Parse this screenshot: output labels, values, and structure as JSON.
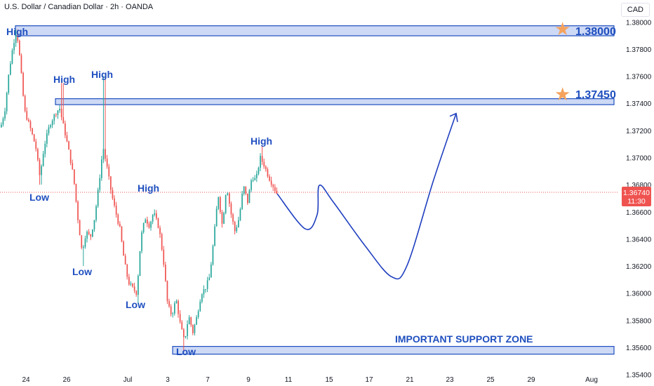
{
  "header": {
    "title": "U.S. Dollar / Canadian Dollar · 2h · OANDA",
    "currency": "CAD"
  },
  "chart_data": {
    "type": "candlestick",
    "yticks": [
      1.38,
      1.378,
      1.376,
      1.374,
      1.372,
      1.37,
      1.368,
      1.366,
      1.364,
      1.362,
      1.36,
      1.358,
      1.356,
      1.354
    ],
    "ylim": [
      1.35315,
      1.38162
    ],
    "xticks": [
      "24",
      "26",
      "Jul",
      "3",
      "7",
      "9",
      "11",
      "15",
      "17",
      "21",
      "23",
      "25",
      "29",
      "Aug"
    ],
    "last_price": "1.36740",
    "countdown": "11:30",
    "levels": [
      {
        "label": "1.38000",
        "top": 1.37972,
        "bottom": 1.37898
      },
      {
        "label": "1.37450",
        "top": 1.37434,
        "bottom": 1.3739
      }
    ],
    "support_zone": {
      "label": "IMPORTANT SUPPORT ZONE",
      "top": 1.35607,
      "bottom": 1.3555
    },
    "annotations": [
      {
        "text": "High",
        "near": 1.3793
      },
      {
        "text": "High",
        "near": 1.37473
      },
      {
        "text": "High",
        "near": 1.37553
      },
      {
        "text": "High",
        "near": 1.37025
      },
      {
        "text": "High",
        "near": 1.36713
      },
      {
        "text": "Low",
        "near": 1.36763
      },
      {
        "text": "Low",
        "near": 1.36152
      },
      {
        "text": "Low",
        "near": 1.3582
      },
      {
        "text": "Low",
        "near": 1.35456
      }
    ],
    "colors": {
      "up": "#26a69a",
      "down": "#ef5350",
      "accent": "#1f4fbf",
      "zone_fill": "#cdd9f5",
      "star": "#f5a25d"
    },
    "anchors": [
      {
        "x": 0,
        "p": 1.37223
      },
      {
        "x": 6,
        "p": 1.37346
      },
      {
        "x": 12,
        "p": 1.37634
      },
      {
        "x": 18,
        "p": 1.37836
      },
      {
        "x": 23,
        "p": 1.37939
      },
      {
        "x": 28,
        "p": 1.37702
      },
      {
        "x": 34,
        "p": 1.37346
      },
      {
        "x": 42,
        "p": 1.37223
      },
      {
        "x": 50,
        "p": 1.37081
      },
      {
        "x": 56,
        "p": 1.36856
      },
      {
        "x": 62,
        "p": 1.37081
      },
      {
        "x": 70,
        "p": 1.37243
      },
      {
        "x": 78,
        "p": 1.37325
      },
      {
        "x": 84,
        "p": 1.37366
      },
      {
        "x": 90,
        "p": 1.37223
      },
      {
        "x": 96,
        "p": 1.37081
      },
      {
        "x": 104,
        "p": 1.36856
      },
      {
        "x": 110,
        "p": 1.36556
      },
      {
        "x": 116,
        "p": 1.36305
      },
      {
        "x": 122,
        "p": 1.36453
      },
      {
        "x": 128,
        "p": 1.36412
      },
      {
        "x": 134,
        "p": 1.36556
      },
      {
        "x": 140,
        "p": 1.36795
      },
      {
        "x": 146,
        "p": 1.37081
      },
      {
        "x": 152,
        "p": 1.36918
      },
      {
        "x": 158,
        "p": 1.36733
      },
      {
        "x": 164,
        "p": 1.36597
      },
      {
        "x": 170,
        "p": 1.36474
      },
      {
        "x": 176,
        "p": 1.36244
      },
      {
        "x": 182,
        "p": 1.3608
      },
      {
        "x": 188,
        "p": 1.36039
      },
      {
        "x": 194,
        "p": 1.35998
      },
      {
        "x": 200,
        "p": 1.36412
      },
      {
        "x": 206,
        "p": 1.36556
      },
      {
        "x": 212,
        "p": 1.36495
      },
      {
        "x": 218,
        "p": 1.36597
      },
      {
        "x": 226,
        "p": 1.36474
      },
      {
        "x": 232,
        "p": 1.36244
      },
      {
        "x": 238,
        "p": 1.35916
      },
      {
        "x": 244,
        "p": 1.35834
      },
      {
        "x": 250,
        "p": 1.35957
      },
      {
        "x": 256,
        "p": 1.35773
      },
      {
        "x": 262,
        "p": 1.3564
      },
      {
        "x": 268,
        "p": 1.35834
      },
      {
        "x": 274,
        "p": 1.35712
      },
      {
        "x": 280,
        "p": 1.35834
      },
      {
        "x": 286,
        "p": 1.35998
      },
      {
        "x": 292,
        "p": 1.36039
      },
      {
        "x": 298,
        "p": 1.36121
      },
      {
        "x": 304,
        "p": 1.36412
      },
      {
        "x": 310,
        "p": 1.36733
      },
      {
        "x": 316,
        "p": 1.36495
      },
      {
        "x": 322,
        "p": 1.36795
      },
      {
        "x": 328,
        "p": 1.36597
      },
      {
        "x": 334,
        "p": 1.36453
      },
      {
        "x": 340,
        "p": 1.36556
      },
      {
        "x": 346,
        "p": 1.36795
      },
      {
        "x": 352,
        "p": 1.36672
      },
      {
        "x": 358,
        "p": 1.36856
      },
      {
        "x": 364,
        "p": 1.36836
      },
      {
        "x": 370,
        "p": 1.37
      },
      {
        "x": 376,
        "p": 1.36939
      },
      {
        "x": 382,
        "p": 1.36856
      },
      {
        "x": 388,
        "p": 1.36795
      },
      {
        "x": 394,
        "p": 1.36733
      }
    ],
    "projection": [
      {
        "x": 395,
        "p": 1.36733
      },
      {
        "x": 435,
        "p": 1.36474
      },
      {
        "x": 452,
        "p": 1.3658
      },
      {
        "x": 455,
        "p": 1.36795
      },
      {
        "x": 475,
        "p": 1.36672
      },
      {
        "x": 520,
        "p": 1.36351
      },
      {
        "x": 558,
        "p": 1.36121
      },
      {
        "x": 580,
        "p": 1.36203
      },
      {
        "x": 618,
        "p": 1.36836
      },
      {
        "x": 650,
        "p": 1.37325
      }
    ]
  }
}
